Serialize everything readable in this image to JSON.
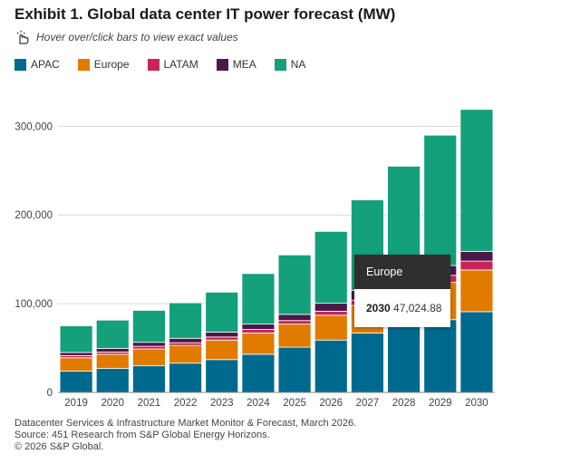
{
  "title": "Exhibit 1. Global data center IT power forecast (MW)",
  "hint": {
    "text": "Hover over/click bars to view exact values",
    "icon": "pointer-hand-icon"
  },
  "chart_data": {
    "type": "bar",
    "stacked": true,
    "title": "Exhibit 1. Global data center IT power forecast (MW)",
    "xlabel": "",
    "ylabel": "",
    "categories": [
      "2019",
      "2020",
      "2021",
      "2022",
      "2023",
      "2024",
      "2025",
      "2026",
      "2027",
      "2028",
      "2029",
      "2030"
    ],
    "ylim": [
      0,
      330000
    ],
    "yticks": [
      0,
      100000,
      200000,
      300000
    ],
    "ytick_labels": [
      "0",
      "100,000",
      "200,000",
      "300,000"
    ],
    "grid": true,
    "legend_position": "top-left",
    "series": [
      {
        "name": "APAC",
        "color": "#006a8e",
        "values": [
          24000,
          27000,
          30000,
          33000,
          37000,
          43000,
          51000,
          59000,
          67000,
          74000,
          82000,
          91000
        ]
      },
      {
        "name": "Europe",
        "color": "#e07b00",
        "values": [
          15000,
          16000,
          19000,
          20000,
          22000,
          24000,
          26000,
          28000,
          31000,
          36000,
          42000,
          47024.88
        ]
      },
      {
        "name": "LATAM",
        "color": "#c8245a",
        "values": [
          2500,
          2500,
          3000,
          3000,
          3500,
          4000,
          4000,
          4500,
          6000,
          7000,
          8000,
          10000
        ]
      },
      {
        "name": "MEA",
        "color": "#4a1948",
        "values": [
          3500,
          4000,
          4500,
          5000,
          5500,
          6000,
          7000,
          9000,
          11000,
          12000,
          11000,
          11000
        ]
      },
      {
        "name": "NA",
        "color": "#13a07a",
        "values": [
          30000,
          32000,
          36000,
          40000,
          45000,
          57000,
          67000,
          81000,
          102000,
          126000,
          147000,
          160000
        ]
      }
    ]
  },
  "tooltip": {
    "series": "Europe",
    "year": "2030",
    "value": "47,024.88"
  },
  "footer": {
    "line1": "Datacenter Services & Infrastructure Market Monitor & Forecast, March 2026.",
    "line2": "Source: 451 Research from S&P Global Energy Horizons.",
    "line3": "© 2026 S&P Global."
  }
}
